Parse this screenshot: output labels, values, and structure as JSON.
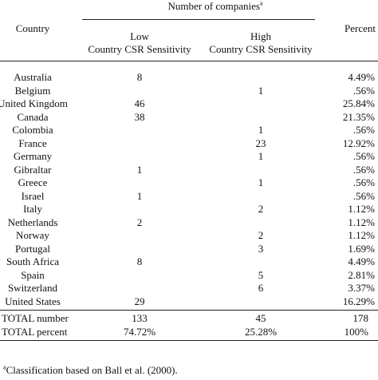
{
  "table": {
    "group_header": "Number of companies",
    "group_header_note_mark": "a",
    "col_country": "Country",
    "col_percent": "Percent",
    "low_line1": "Low",
    "low_line2": "Country CSR Sensitivity",
    "high_line1": "High",
    "high_line2": "Country CSR Sensitivity",
    "rows": [
      {
        "country": "Australia",
        "low": "8",
        "high": "",
        "percent": "4.49%"
      },
      {
        "country": "Belgium",
        "low": "",
        "high": "1",
        "percent": ".56%"
      },
      {
        "country": "United Kingdom",
        "low": "46",
        "high": "",
        "percent": "25.84%"
      },
      {
        "country": "Canada",
        "low": "38",
        "high": "",
        "percent": "21.35%"
      },
      {
        "country": "Colombia",
        "low": "",
        "high": "1",
        "percent": ".56%"
      },
      {
        "country": "France",
        "low": "",
        "high": "23",
        "percent": "12.92%"
      },
      {
        "country": "Germany",
        "low": "",
        "high": "1",
        "percent": ".56%"
      },
      {
        "country": "Gibraltar",
        "low": "1",
        "high": "",
        "percent": ".56%"
      },
      {
        "country": "Greece",
        "low": "",
        "high": "1",
        "percent": ".56%"
      },
      {
        "country": "Israel",
        "low": "1",
        "high": "",
        "percent": ".56%"
      },
      {
        "country": "Italy",
        "low": "",
        "high": "2",
        "percent": "1.12%"
      },
      {
        "country": "Netherlands",
        "low": "2",
        "high": "",
        "percent": "1.12%"
      },
      {
        "country": "Norway",
        "low": "",
        "high": "2",
        "percent": "1.12%"
      },
      {
        "country": "Portugal",
        "low": "",
        "high": "3",
        "percent": "1.69%"
      },
      {
        "country": "South Africa",
        "low": "8",
        "high": "",
        "percent": "4.49%"
      },
      {
        "country": "Spain",
        "low": "",
        "high": "5",
        "percent": "2.81%"
      },
      {
        "country": "Switzerland",
        "low": "",
        "high": "6",
        "percent": "3.37%"
      },
      {
        "country": "United States",
        "low": "29",
        "high": "",
        "percent": "16.29%"
      }
    ],
    "totals": [
      {
        "label": "TOTAL number",
        "low": "133",
        "high": "45",
        "percent": "178"
      },
      {
        "label": "TOTAL percent",
        "low": "74.72%",
        "high": "25.28%",
        "percent": "100%"
      }
    ]
  },
  "footnote": {
    "mark": "a",
    "text": "Classification based on Ball et al. (2000)."
  }
}
